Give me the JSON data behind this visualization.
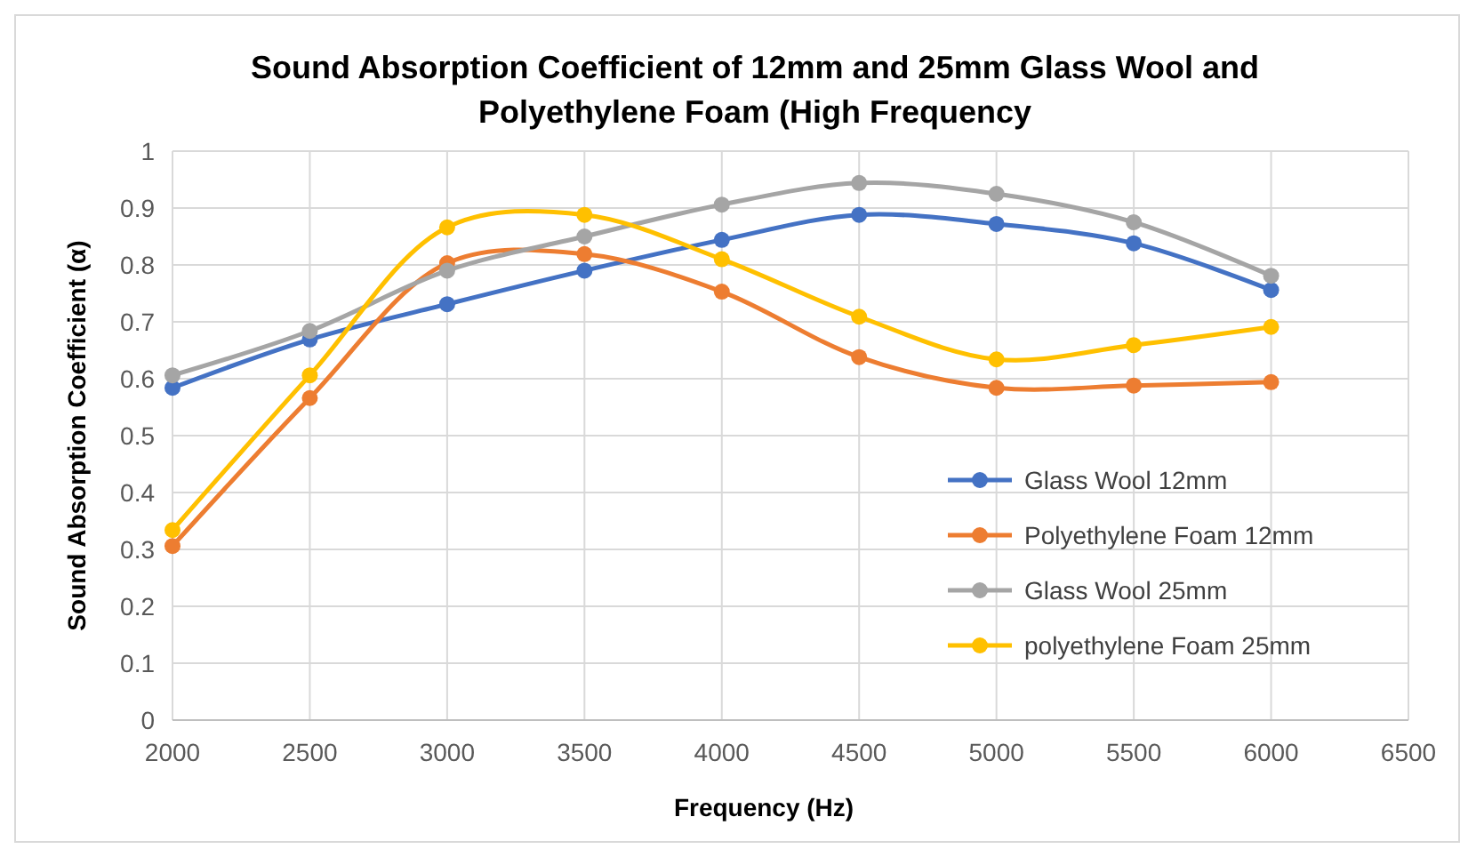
{
  "chart_data": {
    "type": "line",
    "title": "Sound Absorption Coefficient of 12mm and 25mm Glass Wool and Polyethylene Foam (High Frequency",
    "xlabel": "Frequency (Hz)",
    "ylabel": "Sound Absorption Coefficient (α)",
    "x": [
      2000,
      2500,
      3000,
      3500,
      4000,
      4500,
      5000,
      5500,
      6000
    ],
    "series": [
      {
        "name": "Glass Wool 12mm",
        "color": "#4472c4",
        "values": [
          0.584,
          0.669,
          0.731,
          0.79,
          0.844,
          0.888,
          0.872,
          0.838,
          0.756
        ]
      },
      {
        "name": "Polyethylene Foam 12mm",
        "color": "#ed7d31",
        "values": [
          0.306,
          0.566,
          0.803,
          0.819,
          0.753,
          0.638,
          0.584,
          0.588,
          0.594
        ]
      },
      {
        "name": "Glass Wool 25mm",
        "color": "#a5a5a5",
        "values": [
          0.606,
          0.684,
          0.79,
          0.85,
          0.906,
          0.944,
          0.925,
          0.875,
          0.781
        ]
      },
      {
        "name": "polyethylene Foam 25mm",
        "color": "#ffc000",
        "values": [
          0.334,
          0.606,
          0.866,
          0.888,
          0.81,
          0.709,
          0.634,
          0.659,
          0.691
        ]
      }
    ],
    "xlim": [
      2000,
      6500
    ],
    "xticks": [
      2000,
      2500,
      3000,
      3500,
      4000,
      4500,
      5000,
      5500,
      6000,
      6500
    ],
    "ylim": [
      0,
      1
    ],
    "yticks": [
      0,
      0.1,
      0.2,
      0.3,
      0.4,
      0.5,
      0.6,
      0.7,
      0.8,
      0.9,
      1
    ],
    "grid": true,
    "legend": "right",
    "marker": "circle",
    "line_style": "solid"
  }
}
